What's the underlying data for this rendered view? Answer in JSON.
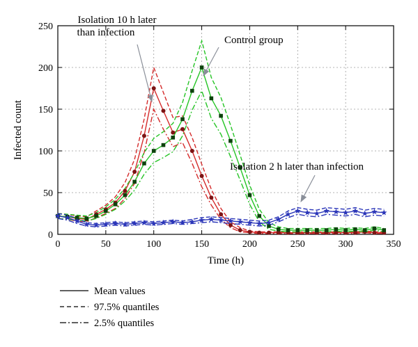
{
  "figure": {
    "xlabel": "Time (h)",
    "ylabel": "Infected count"
  },
  "annotations": {
    "isolation10h": {
      "line1": "Isolation 10 h later",
      "line2": "than infection"
    },
    "control": {
      "label": "Control group"
    },
    "isolation2h": {
      "label": "Isolation 2 h later than infection"
    }
  },
  "legend": {
    "items": [
      {
        "style": "solid",
        "label": "Mean values"
      },
      {
        "style": "dashed",
        "label": "97.5% quantiles"
      },
      {
        "style": "dashdot",
        "label": "2.5% quantiles"
      }
    ]
  },
  "colors": {
    "red_line": "#d42a2a",
    "red_marker": "#7d1414",
    "green_line": "#25c425",
    "green_marker": "#0d420d",
    "blue_line": "#2a35b8",
    "blue_marker": "#2a35b8",
    "grid": "#9a9a9a",
    "axis": "#000000",
    "arrow": "#8a8f99"
  },
  "chart_data": {
    "type": "line",
    "title": "",
    "xlabel": "Time (h)",
    "ylabel": "Infected count",
    "xlim": [
      0,
      350
    ],
    "ylim": [
      0,
      250
    ],
    "xticks": [
      0,
      50,
      100,
      150,
      200,
      250,
      300,
      350
    ],
    "yticks": [
      0,
      50,
      100,
      150,
      200,
      250
    ],
    "grid": true,
    "legend_position": "below-left",
    "x": [
      0,
      10,
      20,
      30,
      40,
      50,
      60,
      70,
      80,
      90,
      100,
      110,
      120,
      130,
      140,
      150,
      160,
      170,
      180,
      190,
      200,
      210,
      220,
      230,
      240,
      250,
      260,
      270,
      280,
      290,
      300,
      310,
      320,
      330,
      340
    ],
    "series": [
      {
        "name": "Isolation 10 h later than infection - 2.5% quantile",
        "group": "isolation10h",
        "stat": "2.5% quantile",
        "color": "#d42a2a",
        "dash": "dashdot",
        "marker": "none",
        "values": [
          19,
          18,
          16,
          15,
          20,
          25,
          31,
          43,
          61,
          98,
          150,
          126,
          105,
          110,
          85,
          57,
          35,
          18,
          8,
          3,
          2,
          1,
          1,
          1,
          1,
          1,
          1,
          1,
          1,
          1,
          1,
          1,
          2,
          1,
          1
        ]
      },
      {
        "name": "Isolation 10 h later than infection - 97.5% quantile",
        "group": "isolation10h",
        "stat": "97.5% quantile",
        "color": "#d42a2a",
        "dash": "dashed",
        "marker": "none",
        "values": [
          25,
          24,
          22,
          21,
          28,
          35,
          45,
          62,
          90,
          138,
          200,
          170,
          140,
          142,
          116,
          84,
          54,
          31,
          15,
          8,
          4,
          3,
          3,
          3,
          3,
          3,
          3,
          3,
          3,
          3,
          3,
          3,
          4,
          3,
          3
        ]
      },
      {
        "name": "Isolation 10 h later than infection - mean",
        "group": "isolation10h",
        "stat": "mean",
        "color": "#d42a2a",
        "dash": "solid",
        "marker": "circle",
        "marker_color": "#7d1414",
        "values": [
          22,
          21,
          19,
          18,
          24,
          30,
          38,
          52,
          75,
          118,
          175,
          148,
          122,
          126,
          100,
          70,
          44,
          24,
          11,
          5,
          3,
          2,
          2,
          2,
          2,
          2,
          2,
          2,
          2,
          2,
          2,
          2,
          3,
          2,
          2
        ]
      },
      {
        "name": "Control group - 2.5% quantile",
        "group": "control",
        "stat": "2.5% quantile",
        "color": "#25c425",
        "dash": "dashdot",
        "marker": "none",
        "values": [
          19,
          18,
          17,
          16,
          19,
          24,
          30,
          40,
          53,
          72,
          86,
          92,
          99,
          118,
          149,
          172,
          139,
          120,
          93,
          65,
          36,
          15,
          6,
          4,
          3,
          3,
          3,
          3,
          3,
          4,
          3,
          4,
          3,
          5,
          3
        ]
      },
      {
        "name": "Control group - 97.5% quantile",
        "group": "control",
        "stat": "97.5% quantile",
        "color": "#25c425",
        "dash": "dashed",
        "marker": "none",
        "values": [
          25,
          24,
          23,
          22,
          26,
          33,
          42,
          55,
          74,
          98,
          115,
          123,
          133,
          158,
          196,
          232,
          188,
          164,
          131,
          95,
          59,
          30,
          14,
          9,
          7,
          7,
          7,
          7,
          7,
          8,
          7,
          8,
          7,
          9,
          7
        ]
      },
      {
        "name": "Control group - mean",
        "group": "control",
        "stat": "mean",
        "color": "#25c425",
        "dash": "solid",
        "marker": "square",
        "marker_color": "#0d420d",
        "values": [
          22,
          21,
          20,
          19,
          22,
          28,
          36,
          47,
          63,
          85,
          100,
          107,
          116,
          138,
          172,
          200,
          163,
          142,
          112,
          80,
          47,
          22,
          10,
          6,
          5,
          5,
          5,
          5,
          5,
          6,
          5,
          6,
          5,
          7,
          5
        ]
      },
      {
        "name": "Isolation 2 h later than infection - 2.5% quantile",
        "group": "isolation2h",
        "stat": "2.5% quantile",
        "color": "#2a35b8",
        "dash": "dashdot",
        "marker": "none",
        "values": [
          19,
          17,
          13,
          10,
          9,
          10,
          11,
          10,
          11,
          12,
          11,
          12,
          13,
          12,
          13,
          14,
          15,
          14,
          13,
          12,
          11,
          10,
          11,
          15,
          20,
          24,
          22,
          21,
          24,
          23,
          22,
          24,
          21,
          23,
          22
        ]
      },
      {
        "name": "Isolation 2 h later than infection - 97.5% quantile",
        "group": "isolation2h",
        "stat": "97.5% quantile",
        "color": "#2a35b8",
        "dash": "dashed",
        "marker": "none",
        "values": [
          25,
          23,
          19,
          14,
          13,
          14,
          15,
          14,
          15,
          16,
          15,
          16,
          17,
          16,
          18,
          20,
          21,
          20,
          19,
          18,
          17,
          16,
          17,
          21,
          28,
          32,
          30,
          29,
          32,
          31,
          30,
          32,
          29,
          31,
          30
        ]
      },
      {
        "name": "Isolation 2 h later than infection - mean",
        "group": "isolation2h",
        "stat": "mean",
        "color": "#2a35b8",
        "dash": "solid",
        "marker": "star",
        "marker_color": "#2a35b8",
        "values": [
          22,
          20,
          16,
          12,
          11,
          12,
          13,
          12,
          13,
          14,
          13,
          14,
          15,
          14,
          15,
          17,
          18,
          17,
          16,
          15,
          14,
          13,
          14,
          18,
          24,
          28,
          26,
          25,
          28,
          27,
          26,
          28,
          25,
          27,
          26
        ]
      }
    ]
  }
}
